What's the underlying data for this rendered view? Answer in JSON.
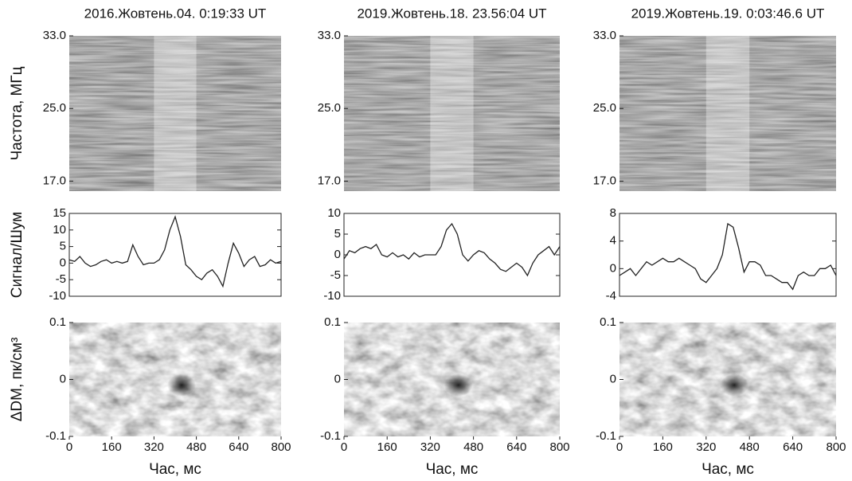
{
  "chart_data": [
    {
      "type": "heatmap",
      "title": "2016.Жовтень.04. 0:19:33 UT",
      "ylabel": "Частота, МГц",
      "xlim": [
        0,
        800
      ],
      "ylim": [
        15.9,
        33
      ],
      "yticks": [
        {
          "value": 17,
          "label": "17.0"
        },
        {
          "value": 25,
          "label": "25.0"
        },
        {
          "value": 33,
          "label": "33.0"
        }
      ],
      "band": [
        320,
        480
      ]
    },
    {
      "type": "heatmap",
      "title": "2019.Жовтень.18. 23.56:04 UT",
      "xlim": [
        0,
        800
      ],
      "ylim": [
        15.9,
        33
      ],
      "yticks": [
        {
          "value": 17,
          "label": "17.0"
        },
        {
          "value": 25,
          "label": "25.0"
        },
        {
          "value": 33,
          "label": "33.0"
        }
      ],
      "band": [
        320,
        480
      ]
    },
    {
      "type": "heatmap",
      "title": "2019.Жовтень.19. 0:03:46.6 UT",
      "xlim": [
        0,
        800
      ],
      "ylim": [
        15.9,
        33
      ],
      "yticks": [
        {
          "value": 17,
          "label": "17.0"
        },
        {
          "value": 25,
          "label": "25.0"
        },
        {
          "value": 33,
          "label": "33.0"
        }
      ],
      "band": [
        320,
        480
      ]
    },
    {
      "type": "line",
      "ylabel": "Сигнал/Шум",
      "xlim": [
        0,
        800
      ],
      "ylim": [
        -10,
        15
      ],
      "yticks": [
        -10,
        -5,
        0,
        5,
        10,
        15
      ],
      "color": "#222222",
      "x": [
        0,
        20,
        40,
        60,
        80,
        100,
        120,
        140,
        160,
        180,
        200,
        220,
        240,
        260,
        280,
        300,
        320,
        340,
        360,
        380,
        400,
        420,
        440,
        460,
        480,
        500,
        520,
        540,
        560,
        580,
        600,
        620,
        640,
        660,
        680,
        700,
        720,
        740,
        760,
        780,
        800
      ],
      "values": [
        1,
        0.5,
        2,
        0,
        -1,
        -0.5,
        0.5,
        1,
        0,
        0.5,
        0,
        0.5,
        5.5,
        2,
        -0.5,
        0,
        0,
        1,
        4,
        10,
        14,
        8,
        -0.5,
        -2,
        -4,
        -5,
        -3,
        -2,
        -4,
        -7,
        0,
        6,
        3,
        -1,
        1,
        2,
        -1,
        -0.5,
        1,
        0,
        0.5
      ]
    },
    {
      "type": "line",
      "xlim": [
        0,
        800
      ],
      "ylim": [
        -10,
        10
      ],
      "yticks": [
        -10,
        -5,
        0,
        5,
        10
      ],
      "color": "#222222",
      "x": [
        0,
        20,
        40,
        60,
        80,
        100,
        120,
        140,
        160,
        180,
        200,
        220,
        240,
        260,
        280,
        300,
        320,
        340,
        360,
        380,
        400,
        420,
        440,
        460,
        480,
        500,
        520,
        540,
        560,
        580,
        600,
        620,
        640,
        660,
        680,
        700,
        720,
        740,
        760,
        780,
        800
      ],
      "values": [
        -1,
        1,
        0.5,
        1.5,
        2,
        1.5,
        2.5,
        0,
        -0.5,
        0.5,
        -0.5,
        0,
        -1,
        0.5,
        -0.5,
        0,
        0,
        0,
        2,
        6,
        7.5,
        5,
        0,
        -1.5,
        0,
        1,
        0.5,
        -1,
        -2,
        -3.5,
        -4,
        -3,
        -2,
        -3,
        -5,
        -2,
        0,
        1,
        2,
        0,
        2
      ]
    },
    {
      "type": "line",
      "xlim": [
        0,
        800
      ],
      "ylim": [
        -4,
        8
      ],
      "yticks": [
        -4,
        0,
        4,
        8
      ],
      "color": "#222222",
      "x": [
        0,
        20,
        40,
        60,
        80,
        100,
        120,
        140,
        160,
        180,
        200,
        220,
        240,
        260,
        280,
        300,
        320,
        340,
        360,
        380,
        400,
        420,
        440,
        460,
        480,
        500,
        520,
        540,
        560,
        580,
        600,
        620,
        640,
        660,
        680,
        700,
        720,
        740,
        760,
        780,
        800
      ],
      "values": [
        -1,
        -0.5,
        0,
        -1,
        0,
        1,
        0.5,
        1,
        1.5,
        1,
        1,
        1.5,
        1,
        0.5,
        0,
        -1.5,
        -2,
        -1,
        0,
        2,
        6.5,
        6,
        3,
        -0.5,
        1,
        1,
        0.5,
        -1,
        -1,
        -1.5,
        -2,
        -2,
        -3,
        -1,
        -0.5,
        -1,
        -1,
        0,
        0,
        0.5,
        -1
      ]
    },
    {
      "type": "heatmap",
      "ylabel": "ΔDM, пк/см³",
      "xlabel": "Час, мс",
      "xlim": [
        0,
        800
      ],
      "ylim": [
        -0.1,
        0.1
      ],
      "xticks": [
        0,
        160,
        320,
        480,
        640,
        800
      ],
      "yticks": [
        -0.1,
        0,
        0.1
      ]
    },
    {
      "type": "heatmap",
      "xlabel": "Час, мс",
      "xlim": [
        0,
        800
      ],
      "ylim": [
        -0.1,
        0.1
      ],
      "xticks": [
        0,
        160,
        320,
        480,
        640,
        800
      ],
      "yticks": [
        -0.1,
        0,
        0.1
      ]
    },
    {
      "type": "heatmap",
      "xlabel": "Час, мс",
      "xlim": [
        0,
        800
      ],
      "ylim": [
        -0.1,
        0.1
      ],
      "xticks": [
        0,
        160,
        320,
        480,
        640,
        800
      ],
      "yticks": [
        -0.1,
        0,
        0.1
      ]
    }
  ]
}
